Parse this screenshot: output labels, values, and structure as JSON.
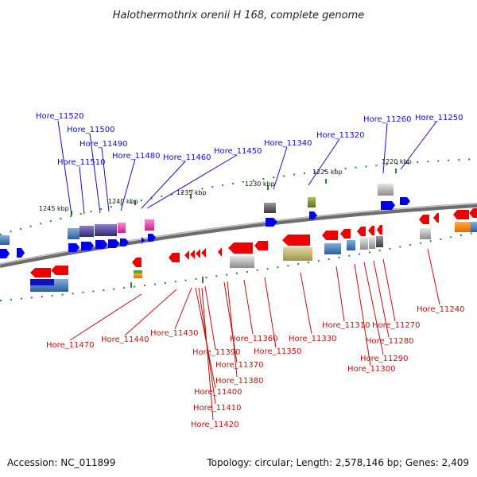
{
  "title": "Halothermothrix orenii H 168, complete genome",
  "footer": {
    "accession": "Accession: NC_011899",
    "topology": "Topology: circular; Length: 2,578,146 bp; Genes: 2,409"
  },
  "kbp_ticks": [
    "1245 kbp",
    "1240 kbp",
    "1235 kbp",
    "1230 kbp",
    "1225 kbp",
    "1220 kbp"
  ],
  "top_labels": [
    "Hore_11520",
    "Hore_11500",
    "Hore_11490",
    "Hore_11510",
    "Hore_11480",
    "Hore_11460",
    "Hore_11450",
    "Hore_11340",
    "Hore_11320",
    "Hore_11260",
    "Hore_11250"
  ],
  "bottom_labels": [
    "Hore_11470",
    "Hore_11440",
    "Hore_11430",
    "Hore_11390",
    "Hore_11400",
    "Hore_11410",
    "Hore_11420",
    "Hore_11370",
    "Hore_11380",
    "Hore_11360",
    "Hore_11350",
    "Hore_11330",
    "Hore_11310",
    "Hore_11280",
    "Hore_11290",
    "Hore_11300",
    "Hore_11270",
    "Hore_11240"
  ],
  "colors": {
    "forward_strand": "#0000ee",
    "reverse_strand": "#ee0000",
    "label_top": "#1010c0",
    "label_bottom": "#c01010",
    "backbone": "#8a8a8a",
    "tick": "#228b22"
  }
}
